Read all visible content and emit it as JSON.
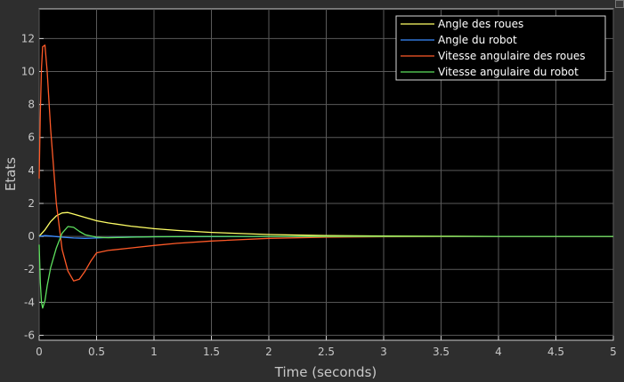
{
  "chart_data": {
    "type": "line",
    "xlabel": "Time (seconds)",
    "ylabel": "Etats",
    "xlim": [
      0,
      5
    ],
    "ylim": [
      -6.3,
      13.8
    ],
    "xticks": [
      0,
      0.5,
      1,
      1.5,
      2,
      2.5,
      3,
      3.5,
      4,
      4.5,
      5
    ],
    "xtick_labels": [
      "0",
      "0.5",
      "1",
      "1.5",
      "2",
      "2.5",
      "3",
      "3.5",
      "4",
      "4.5",
      "5"
    ],
    "yticks": [
      -6,
      -4,
      -2,
      0,
      2,
      4,
      6,
      8,
      10,
      12
    ],
    "ytick_labels": [
      "-6",
      "-4",
      "-2",
      "0",
      "2",
      "4",
      "6",
      "8",
      "10",
      "12"
    ],
    "grid": true,
    "legend_position": "top-right",
    "background": "#000000",
    "series": [
      {
        "name": "Angle des roues",
        "color": "#ffff66",
        "x": [
          0,
          0.05,
          0.1,
          0.15,
          0.2,
          0.25,
          0.3,
          0.4,
          0.5,
          0.6,
          0.8,
          1.0,
          1.2,
          1.5,
          2.0,
          2.5,
          3.0,
          3.5,
          4.0,
          5.0
        ],
        "y": [
          0,
          0.4,
          0.9,
          1.25,
          1.42,
          1.45,
          1.35,
          1.15,
          0.95,
          0.82,
          0.62,
          0.47,
          0.36,
          0.24,
          0.11,
          0.05,
          0.02,
          0.01,
          0,
          0
        ]
      },
      {
        "name": "Angle du robot",
        "color": "#3b8bff",
        "x": [
          0,
          0.05,
          0.1,
          0.2,
          0.3,
          0.4,
          0.5,
          0.6,
          0.8,
          1.0,
          1.5,
          2.0,
          3.0,
          5.0
        ],
        "y": [
          0,
          0.05,
          0.02,
          -0.05,
          -0.1,
          -0.12,
          -0.1,
          -0.07,
          -0.04,
          -0.02,
          -0.01,
          0,
          0,
          0
        ]
      },
      {
        "name": "Vitesse angulaire des roues",
        "color": "#ff5a28",
        "x": [
          0,
          0.01,
          0.02,
          0.03,
          0.05,
          0.07,
          0.1,
          0.15,
          0.2,
          0.25,
          0.3,
          0.35,
          0.4,
          0.45,
          0.5,
          0.6,
          0.8,
          1.0,
          1.2,
          1.5,
          2.0,
          2.5,
          3.0,
          3.5,
          4.0,
          5.0
        ],
        "y": [
          3.5,
          7.5,
          10.2,
          11.5,
          11.6,
          10.0,
          6.5,
          2.0,
          -0.8,
          -2.1,
          -2.7,
          -2.6,
          -2.1,
          -1.5,
          -1.0,
          -0.85,
          -0.7,
          -0.55,
          -0.42,
          -0.28,
          -0.12,
          -0.05,
          -0.02,
          -0.01,
          0,
          0
        ]
      },
      {
        "name": "Vitesse angulaire du robot",
        "color": "#5ee05e",
        "x": [
          0,
          0.01,
          0.02,
          0.03,
          0.05,
          0.07,
          0.1,
          0.15,
          0.2,
          0.25,
          0.3,
          0.35,
          0.4,
          0.5,
          0.6,
          0.8,
          1.0,
          1.5,
          2.0,
          5.0
        ],
        "y": [
          -0.5,
          -2.8,
          -4.0,
          -4.35,
          -3.9,
          -3.0,
          -1.9,
          -0.7,
          0.2,
          0.6,
          0.55,
          0.3,
          0.1,
          -0.05,
          -0.08,
          -0.05,
          -0.02,
          0,
          0,
          0
        ]
      }
    ]
  }
}
